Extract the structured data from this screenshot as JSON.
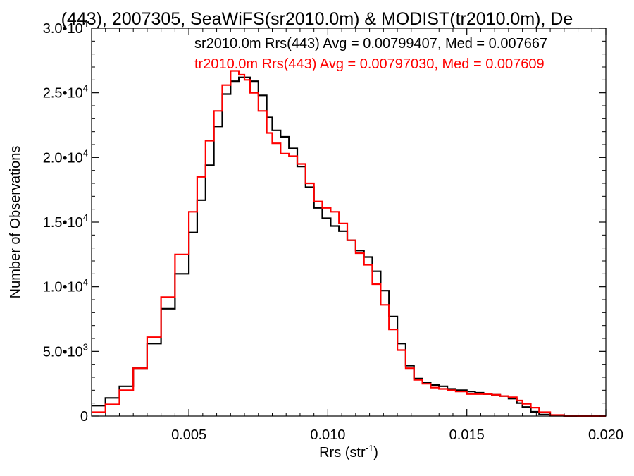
{
  "chart_data": {
    "type": "line",
    "title": "(443), 2007305, SeaWiFS(sr2010.0m) & MODIST(tr2010.0m), De",
    "xlabel": "Rrs (str",
    "xlabel_sup": "-1",
    "xlabel_close": ")",
    "ylabel": "Number of Observations",
    "xlim": [
      0.0015,
      0.02
    ],
    "ylim": [
      0,
      30000
    ],
    "grid": false,
    "x_ticks": [
      {
        "value": 0.005,
        "label": "0.005"
      },
      {
        "value": 0.01,
        "label": "0.010"
      },
      {
        "value": 0.015,
        "label": "0.015"
      },
      {
        "value": 0.02,
        "label": "0.020"
      }
    ],
    "y_ticks": [
      {
        "value": 0,
        "label": "0",
        "exp": ""
      },
      {
        "value": 5000,
        "label": "5.0•10",
        "exp": "3"
      },
      {
        "value": 10000,
        "label": "1.0•10",
        "exp": "4"
      },
      {
        "value": 15000,
        "label": "1.5•10",
        "exp": "4"
      },
      {
        "value": 20000,
        "label": "2.0•10",
        "exp": "4"
      },
      {
        "value": 25000,
        "label": "2.5•10",
        "exp": "4"
      },
      {
        "value": 30000,
        "label": "3.0•10",
        "exp": "4"
      }
    ],
    "annotations": [
      {
        "text": "sr2010.0m Rrs(443) Avg = 0.00799407, Med = 0.007667",
        "color": "#000000"
      },
      {
        "text": "tr2010.0m Rrs(443) Avg = 0.00797030, Med = 0.007609",
        "color": "#ff0000"
      }
    ],
    "series": [
      {
        "color": "#000000",
        "x": [
          0.0015,
          0.002,
          0.0025,
          0.003,
          0.0035,
          0.004,
          0.0045,
          0.005,
          0.0053,
          0.0056,
          0.0059,
          0.0062,
          0.0065,
          0.0068,
          0.007,
          0.0072,
          0.0075,
          0.0078,
          0.008,
          0.0083,
          0.0086,
          0.0089,
          0.0092,
          0.0095,
          0.0098,
          0.0101,
          0.0104,
          0.0107,
          0.011,
          0.0113,
          0.0116,
          0.0119,
          0.0122,
          0.0125,
          0.0128,
          0.0131,
          0.0134,
          0.0137,
          0.014,
          0.0143,
          0.0146,
          0.015,
          0.0153,
          0.0156,
          0.0159,
          0.0162,
          0.0165,
          0.0168,
          0.017,
          0.0173,
          0.0176,
          0.018,
          0.0185,
          0.019,
          0.0195,
          0.02
        ],
        "y": [
          800,
          1400,
          2300,
          3700,
          5600,
          8300,
          11000,
          14200,
          16700,
          19400,
          22400,
          24900,
          25900,
          26200,
          26200,
          25900,
          24800,
          23100,
          22100,
          21600,
          20700,
          19300,
          17700,
          16100,
          15300,
          14700,
          14300,
          13600,
          12800,
          12300,
          11200,
          9700,
          7700,
          5600,
          3900,
          2900,
          2600,
          2400,
          2300,
          2100,
          2000,
          1900,
          1800,
          1700,
          1650,
          1550,
          1350,
          1000,
          700,
          330,
          120,
          30,
          5,
          0,
          0,
          0
        ]
      },
      {
        "color": "#ff0000",
        "x": [
          0.0015,
          0.002,
          0.0025,
          0.003,
          0.0035,
          0.004,
          0.0045,
          0.005,
          0.0053,
          0.0056,
          0.0059,
          0.0062,
          0.0065,
          0.0068,
          0.007,
          0.0072,
          0.0075,
          0.0078,
          0.008,
          0.0083,
          0.0086,
          0.0089,
          0.0092,
          0.0095,
          0.0098,
          0.0101,
          0.0104,
          0.0107,
          0.011,
          0.0113,
          0.0116,
          0.0119,
          0.0122,
          0.0125,
          0.0128,
          0.0131,
          0.0134,
          0.0137,
          0.014,
          0.0143,
          0.0146,
          0.015,
          0.0153,
          0.0156,
          0.0159,
          0.0162,
          0.0165,
          0.0168,
          0.017,
          0.0173,
          0.0176,
          0.018,
          0.0185,
          0.019,
          0.0195,
          0.02
        ],
        "y": [
          300,
          900,
          2000,
          3700,
          6100,
          9200,
          12500,
          15800,
          18500,
          21300,
          23600,
          25600,
          26700,
          26400,
          26000,
          25000,
          23600,
          21900,
          21100,
          20300,
          20100,
          19500,
          18000,
          16600,
          16100,
          15800,
          14900,
          13600,
          12600,
          11700,
          10200,
          8600,
          6700,
          5100,
          3700,
          2800,
          2500,
          2200,
          2100,
          2000,
          1900,
          1700,
          1700,
          1700,
          1650,
          1550,
          1450,
          1200,
          950,
          650,
          300,
          80,
          10,
          0,
          0,
          0
        ]
      }
    ]
  }
}
